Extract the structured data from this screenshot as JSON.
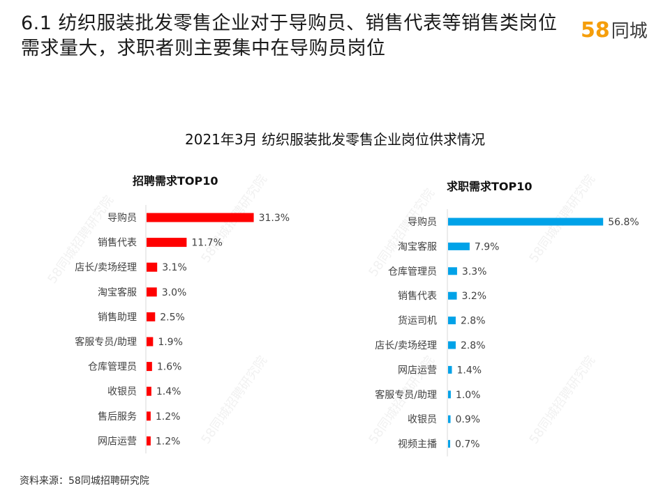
{
  "header": {
    "title": "6.1 纺织服装批发零售企业对于导购员、销售代表等销售类岗位需求量大，求职者则主要集中在导购员岗位",
    "logo_number": "58",
    "logo_text": "同城"
  },
  "main_title": "2021年3月 纺织服装批发零售企业岗位供求情况",
  "source": "资料来源：58同城招聘研究院",
  "watermark": "58同城招聘研究院",
  "colors": {
    "left_bar": "#ff0000",
    "right_bar": "#00a2e8"
  },
  "chart_data": [
    {
      "type": "bar",
      "orientation": "horizontal",
      "title": "招聘需求TOP10",
      "categories": [
        "导购员",
        "销售代表",
        "店长/卖场经理",
        "淘宝客服",
        "销售助理",
        "客服专员/助理",
        "仓库管理员",
        "收银员",
        "售后服务",
        "网店运营"
      ],
      "values": [
        31.3,
        11.7,
        3.1,
        3.0,
        2.5,
        1.9,
        1.6,
        1.4,
        1.2,
        1.2
      ],
      "labels": [
        "31.3%",
        "11.7%",
        "3.1%",
        "3.0%",
        "2.5%",
        "1.9%",
        "1.6%",
        "1.4%",
        "1.2%",
        "1.2%"
      ],
      "xlim": [
        0,
        32
      ]
    },
    {
      "type": "bar",
      "orientation": "horizontal",
      "title": "求职需求TOP10",
      "categories": [
        "导购员",
        "淘宝客服",
        "仓库管理员",
        "销售代表",
        "货运司机",
        "店长/卖场经理",
        "网店运营",
        "客服专员/助理",
        "收银员",
        "视频主播"
      ],
      "values": [
        56.8,
        7.9,
        3.3,
        3.2,
        2.8,
        2.8,
        1.4,
        1.0,
        0.9,
        0.7
      ],
      "labels": [
        "56.8%",
        "7.9%",
        "3.3%",
        "3.2%",
        "2.8%",
        "2.8%",
        "1.4%",
        "1.0%",
        "0.9%",
        "0.7%"
      ],
      "xlim": [
        0,
        57
      ]
    }
  ]
}
